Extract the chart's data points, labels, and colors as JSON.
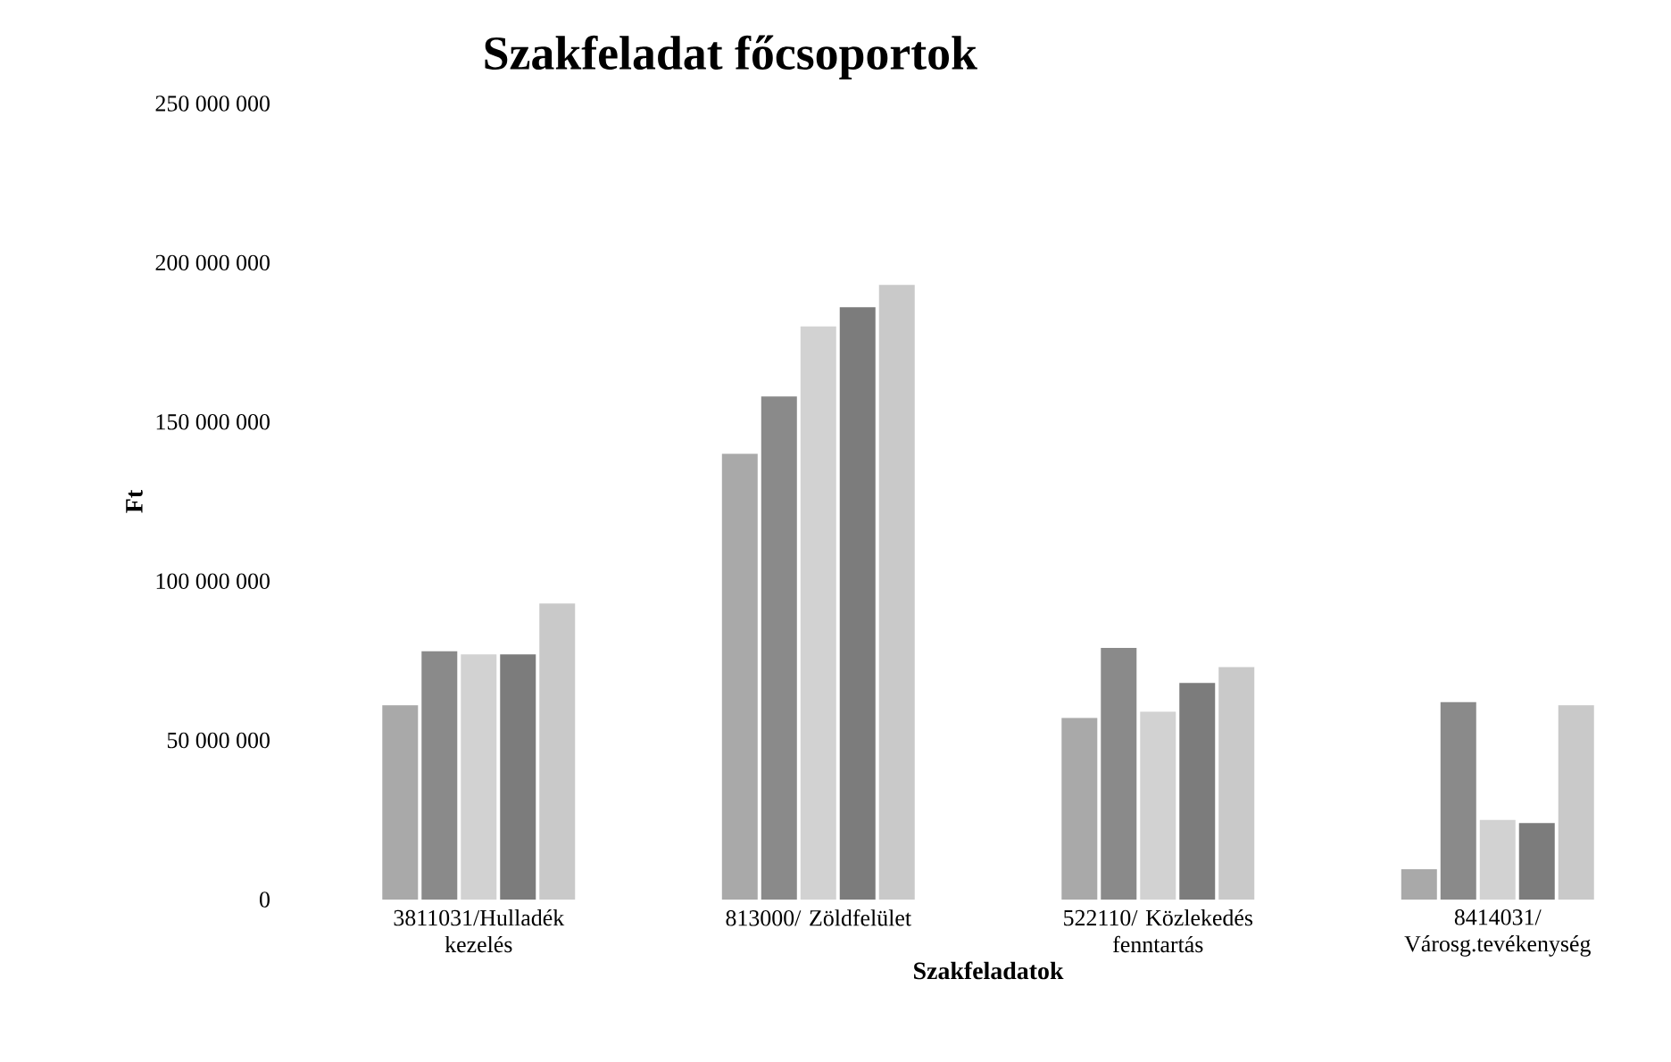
{
  "chart_data": {
    "type": "bar",
    "title": "Szakfeladat főcsoportok",
    "xlabel": "Szakfeladatok",
    "ylabel": "Ft",
    "categories": [
      "3811031/Hulladék kezelés",
      "813000/ Zöldfelület",
      "522110/ Közlekedés fenntartás",
      "8414031/ Városg.tevékenység"
    ],
    "series": [
      {
        "color": "#a9a9a9",
        "values": [
          61000000,
          140000000,
          57000000,
          9500000
        ]
      },
      {
        "color": "#8a8a8a",
        "values": [
          78000000,
          158000000,
          79000000,
          62000000
        ]
      },
      {
        "color": "#d2d2d2",
        "values": [
          77000000,
          180000000,
          59000000,
          25000000
        ]
      },
      {
        "color": "#7c7c7c",
        "values": [
          77000000,
          186000000,
          68000000,
          24000000
        ]
      },
      {
        "color": "#c9c9c9",
        "values": [
          93000000,
          193000000,
          73000000,
          61000000
        ]
      }
    ],
    "ylim": [
      0,
      250000000
    ],
    "yticks": [
      {
        "value": 0,
        "label": "0"
      },
      {
        "value": 50000000,
        "label": "50 000 000"
      },
      {
        "value": 100000000,
        "label": "100 000 000"
      },
      {
        "value": 150000000,
        "label": "150 000 000"
      },
      {
        "value": 200000000,
        "label": "200 000 000"
      },
      {
        "value": 250000000,
        "label": "250 000 000"
      }
    ],
    "grid": false
  }
}
